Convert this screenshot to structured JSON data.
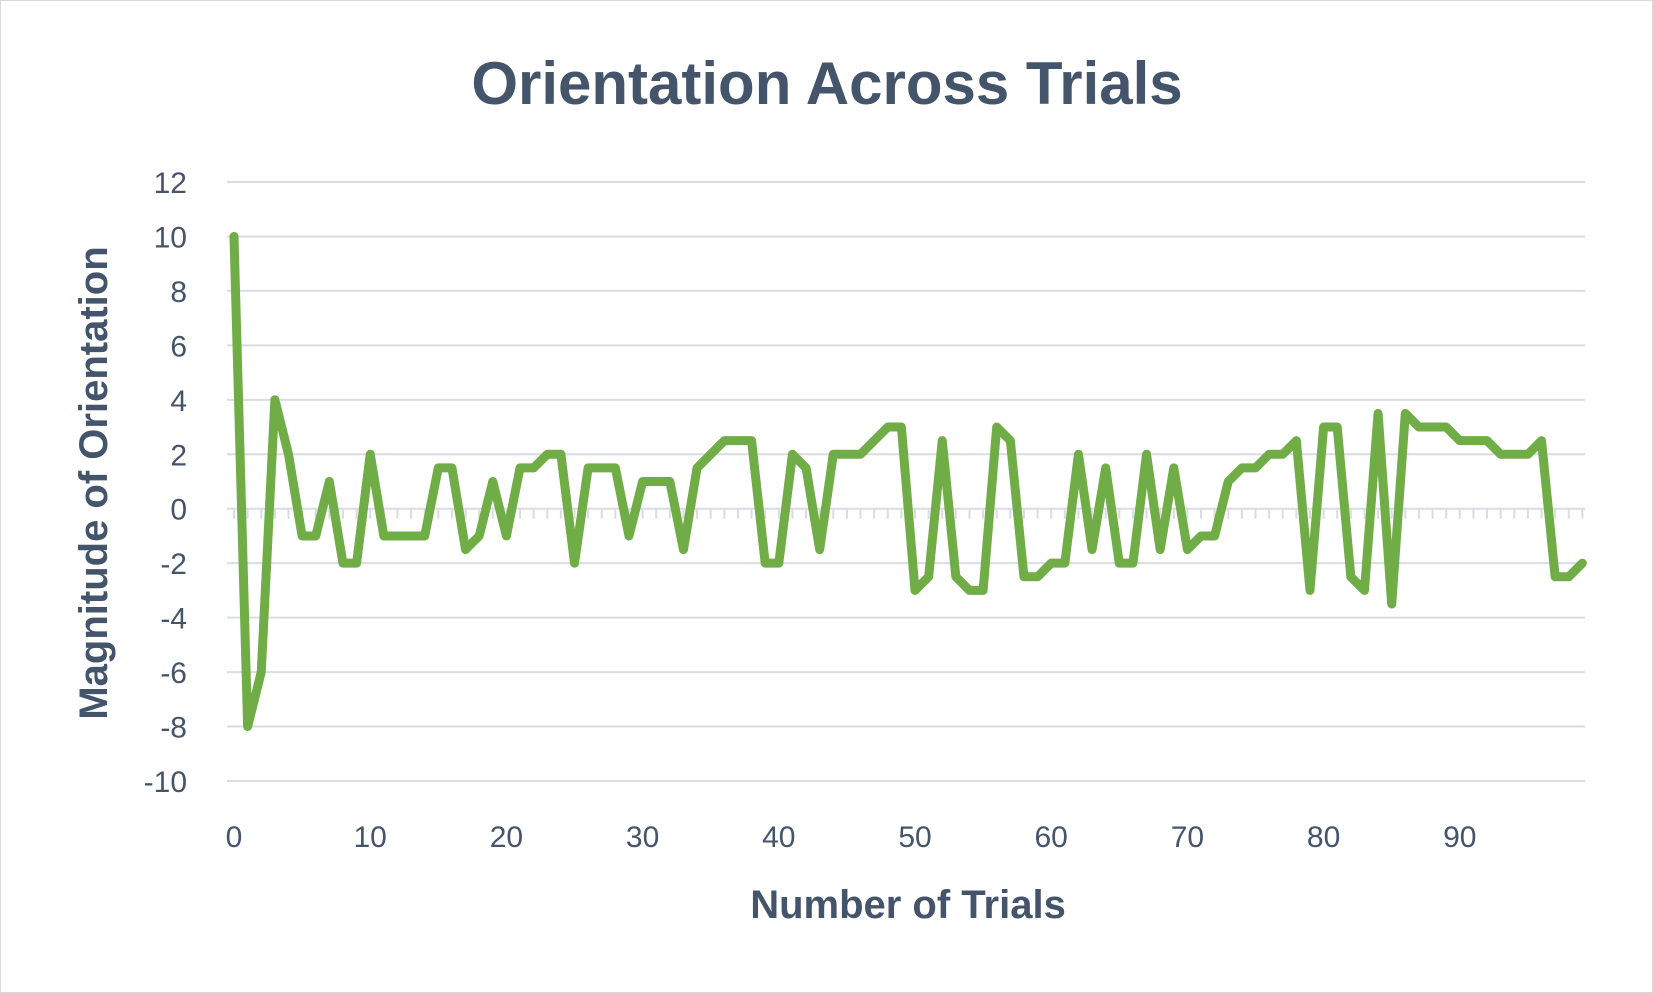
{
  "chart_data": {
    "type": "line",
    "title": "Orientation Across Trials",
    "xlabel": "Number of Trials",
    "ylabel": "Magnitude of Orientation",
    "xlim": [
      0,
      99
    ],
    "ylim": [
      -10,
      12
    ],
    "x_ticks": [
      0,
      10,
      20,
      30,
      40,
      50,
      60,
      70,
      80,
      90
    ],
    "y_ticks": [
      12,
      10,
      8,
      6,
      4,
      2,
      0,
      -2,
      -4,
      -6,
      -8,
      -10
    ],
    "grid": true,
    "legend": "none",
    "series": [
      {
        "color": "#70ad47",
        "values": [
          10,
          -8,
          -6,
          4,
          2,
          -1,
          -1,
          1,
          -2,
          -2,
          2,
          -1,
          -1,
          -1,
          -1,
          1.5,
          1.5,
          -1.5,
          -1,
          1,
          -1,
          1.5,
          1.5,
          2,
          2,
          -2,
          1.5,
          1.5,
          1.5,
          -1,
          1,
          1,
          1,
          -1.5,
          1.5,
          2,
          2.5,
          2.5,
          2.5,
          -2,
          -2,
          2,
          1.5,
          -1.5,
          2,
          2,
          2,
          2.5,
          3,
          3,
          -3,
          -2.5,
          2.5,
          -2.5,
          -3,
          -3,
          3,
          2.5,
          -2.5,
          -2.5,
          -2,
          -2,
          2,
          -1.5,
          1.5,
          -2,
          -2,
          2,
          -1.5,
          1.5,
          -1.5,
          -1,
          -1,
          1,
          1.5,
          1.5,
          2,
          2,
          2.5,
          -3,
          3,
          3,
          -2.5,
          -3,
          3.5,
          -3.5,
          3.5,
          3,
          3,
          3,
          2.5,
          2.5,
          2.5,
          2,
          2,
          2,
          2.5,
          -2.5,
          -2.5,
          -2
        ]
      }
    ]
  }
}
